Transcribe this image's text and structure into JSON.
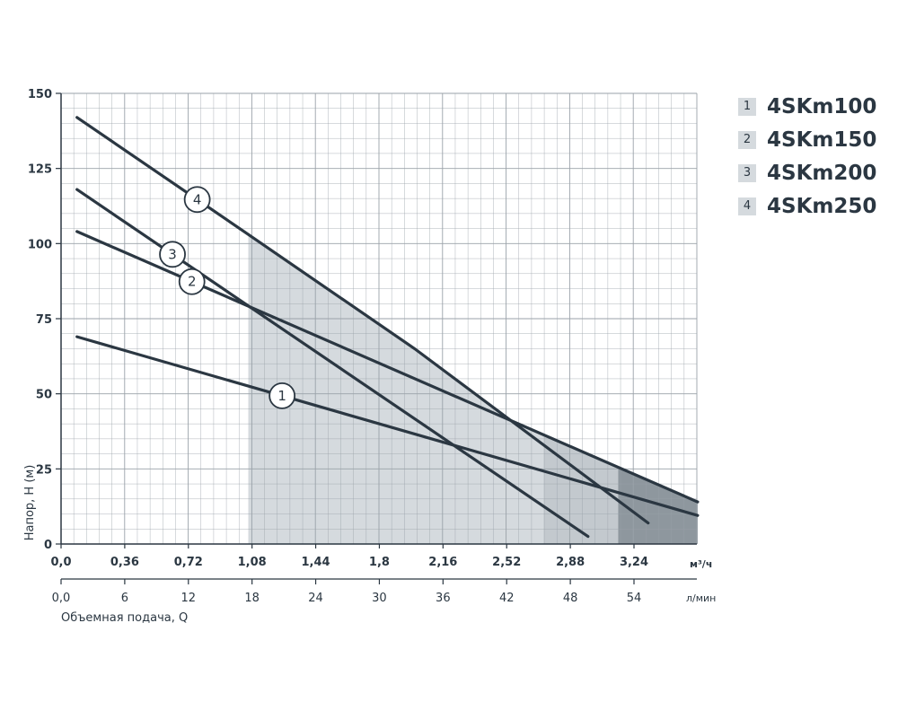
{
  "chart_data": {
    "type": "line",
    "ylabel": "Напор, H (м)",
    "xlabel": "Объемная подача, Q",
    "x_unit_primary": "м³/ч",
    "x_unit_secondary": "л/мин",
    "ylim": [
      0,
      150
    ],
    "xlim": [
      0,
      3.6
    ],
    "y_ticks": [
      "0",
      "25",
      "50",
      "75",
      "100",
      "125",
      "150"
    ],
    "x_ticks_m3h": [
      "0,0",
      "0,36",
      "0,72",
      "1,08",
      "1,44",
      "1,8",
      "2,16",
      "2,52",
      "2,88",
      "3,24"
    ],
    "x_ticks_lmin": [
      "0,0",
      "6",
      "12",
      "18",
      "24",
      "30",
      "36",
      "42",
      "48",
      "54"
    ],
    "grid": true,
    "legend_position": "top-right",
    "series": [
      {
        "name": "4SKm100",
        "marker": "1",
        "x": [
          0.09,
          3.6
        ],
        "y": [
          69,
          9.5
        ],
        "region": [
          1.06,
          2.73
        ]
      },
      {
        "name": "4SKm150",
        "marker": "2",
        "x": [
          0.09,
          3.6
        ],
        "y": [
          104,
          14
        ],
        "region": [
          1.06,
          3.6
        ]
      },
      {
        "name": "4SKm200",
        "marker": "3",
        "x": [
          0.09,
          2.98
        ],
        "y": [
          118,
          2.5
        ],
        "region": [
          1.06,
          2.73
        ]
      },
      {
        "name": "4SKm250",
        "marker": "4",
        "x": [
          0.09,
          1.06,
          2.0,
          3.32
        ],
        "y": [
          142,
          103,
          65,
          7
        ],
        "region": [
          1.06,
          3.15
        ]
      }
    ]
  },
  "colors": {
    "line": "#2b3742",
    "grid": "#9aa2a9",
    "fill_light": "#d5dade",
    "fill_mid": "#c3c9ce",
    "fill_dark": "#8e979e"
  }
}
